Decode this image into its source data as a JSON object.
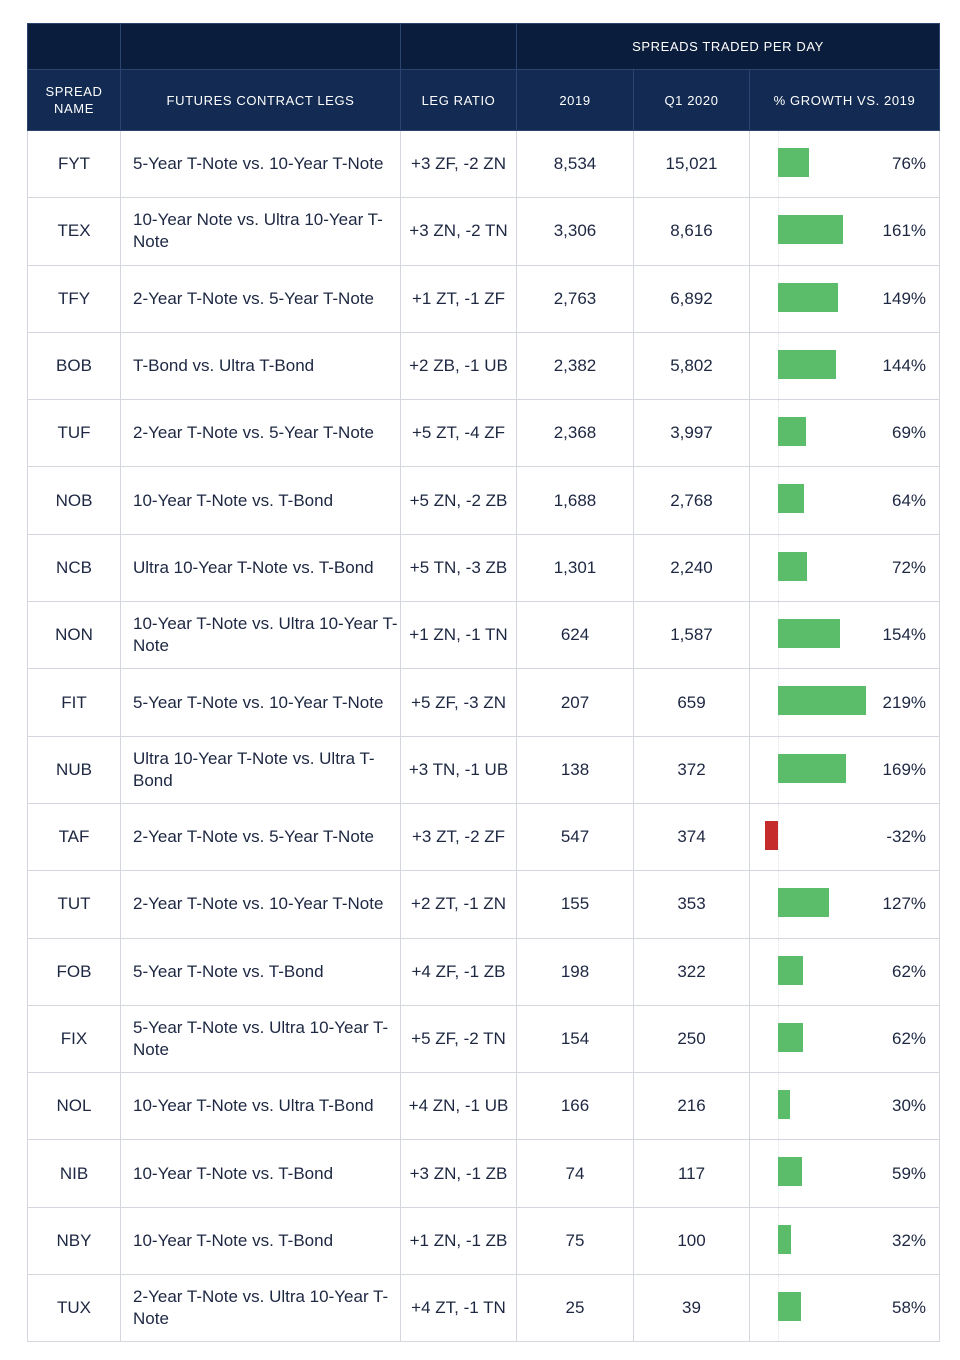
{
  "header": {
    "group_label": "SPREADS TRADED PER DAY",
    "columns": [
      "SPREAD NAME",
      "FUTURES CONTRACT LEGS",
      "LEG RATIO",
      "2019",
      "Q1 2020",
      "% GROWTH VS. 2019"
    ]
  },
  "colors": {
    "positive": "#5bbd6a",
    "negative": "#c62b2b",
    "header_dark": "#0b1d3c",
    "header": "#132b52"
  },
  "chart_data": {
    "type": "table",
    "rows": [
      {
        "name": "FYT",
        "legs": "5-Year T-Note vs. 10-Year T-Note",
        "ratio": "+3 ZF, -2 ZN",
        "y2019": "8,534",
        "q12020": "15,021",
        "growth": 76,
        "growth_label": "76%"
      },
      {
        "name": "TEX",
        "legs": "10-Year Note vs. Ultra 10-Year T-Note",
        "ratio": "+3 ZN, -2 TN",
        "y2019": "3,306",
        "q12020": "8,616",
        "growth": 161,
        "growth_label": "161%"
      },
      {
        "name": "TFY",
        "legs": "2-Year T-Note vs. 5-Year T-Note",
        "ratio": "+1 ZT, -1 ZF",
        "y2019": "2,763",
        "q12020": "6,892",
        "growth": 149,
        "growth_label": "149%"
      },
      {
        "name": "BOB",
        "legs": "T-Bond vs. Ultra T-Bond",
        "ratio": "+2 ZB, -1 UB",
        "y2019": "2,382",
        "q12020": "5,802",
        "growth": 144,
        "growth_label": "144%"
      },
      {
        "name": "TUF",
        "legs": "2-Year T-Note vs. 5-Year T-Note",
        "ratio": "+5 ZT, -4 ZF",
        "y2019": "2,368",
        "q12020": "3,997",
        "growth": 69,
        "growth_label": "69%"
      },
      {
        "name": "NOB",
        "legs": "10-Year T-Note vs. T-Bond",
        "ratio": "+5 ZN, -2 ZB",
        "y2019": "1,688",
        "q12020": "2,768",
        "growth": 64,
        "growth_label": "64%"
      },
      {
        "name": "NCB",
        "legs": "Ultra 10-Year T-Note vs. T-Bond",
        "ratio": "+5 TN, -3 ZB",
        "y2019": "1,301",
        "q12020": "2,240",
        "growth": 72,
        "growth_label": "72%"
      },
      {
        "name": "NON",
        "legs": "10-Year T-Note vs. Ultra 10-Year T-Note",
        "ratio": "+1 ZN, -1 TN",
        "y2019": "624",
        "q12020": "1,587",
        "growth": 154,
        "growth_label": "154%"
      },
      {
        "name": "FIT",
        "legs": "5-Year T-Note vs. 10-Year T-Note",
        "ratio": "+5 ZF, -3 ZN",
        "y2019": "207",
        "q12020": "659",
        "growth": 219,
        "growth_label": "219%"
      },
      {
        "name": "NUB",
        "legs": "Ultra 10-Year T-Note vs. Ultra T-Bond",
        "ratio": "+3 TN, -1 UB",
        "y2019": "138",
        "q12020": "372",
        "growth": 169,
        "growth_label": "169%"
      },
      {
        "name": "TAF",
        "legs": "2-Year T-Note vs. 5-Year T-Note",
        "ratio": "+3 ZT, -2 ZF",
        "y2019": "547",
        "q12020": "374",
        "growth": -32,
        "growth_label": "-32%"
      },
      {
        "name": "TUT",
        "legs": "2-Year T-Note vs. 10-Year T-Note",
        "ratio": "+2 ZT, -1 ZN",
        "y2019": "155",
        "q12020": "353",
        "growth": 127,
        "growth_label": "127%"
      },
      {
        "name": "FOB",
        "legs": "5-Year T-Note vs. T-Bond",
        "ratio": "+4 ZF, -1 ZB",
        "y2019": "198",
        "q12020": "322",
        "growth": 62,
        "growth_label": "62%"
      },
      {
        "name": "FIX",
        "legs": "5-Year T-Note vs. Ultra 10-Year T-Note",
        "ratio": "+5 ZF, -2 TN",
        "y2019": "154",
        "q12020": "250",
        "growth": 62,
        "growth_label": "62%"
      },
      {
        "name": "NOL",
        "legs": "10-Year T-Note vs. Ultra T-Bond",
        "ratio": "+4 ZN, -1 UB",
        "y2019": "166",
        "q12020": "216",
        "growth": 30,
        "growth_label": "30%"
      },
      {
        "name": "NIB",
        "legs": "10-Year T-Note vs. T-Bond",
        "ratio": "+3 ZN, -1 ZB",
        "y2019": "74",
        "q12020": "117",
        "growth": 59,
        "growth_label": "59%"
      },
      {
        "name": "NBY",
        "legs": "10-Year T-Note vs. T-Bond",
        "ratio": "+1 ZN, -1 ZB",
        "y2019": "75",
        "q12020": "100",
        "growth": 32,
        "growth_label": "32%"
      },
      {
        "name": "TUX",
        "legs": "2-Year T-Note vs. Ultra 10-Year T-Note",
        "ratio": "+4 ZT, -1 TN",
        "y2019": "25",
        "q12020": "39",
        "growth": 58,
        "growth_label": "58%"
      }
    ]
  }
}
